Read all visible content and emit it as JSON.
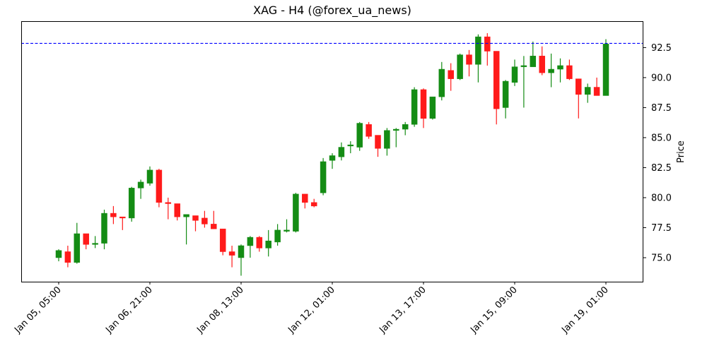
{
  "title": "XAG - H4 (@forex_ua_news)",
  "colors": {
    "up": "#148c14",
    "down": "#ff1a1a",
    "reference_line": "#0000ff",
    "axes": "#000000"
  },
  "chart_data": {
    "type": "candlestick",
    "title": "XAG - H4 (@forex_ua_news)",
    "xlabel": "",
    "ylabel": "Price",
    "ylim": [
      73.0,
      94.7
    ],
    "yticks": [
      75.0,
      77.5,
      80.0,
      82.5,
      85.0,
      87.5,
      90.0,
      92.5
    ],
    "ytick_labels": [
      "75.0",
      "77.5",
      "80.0",
      "82.5",
      "85.0",
      "87.5",
      "90.0",
      "92.5"
    ],
    "xtick_indices": [
      0,
      10,
      20,
      30,
      40,
      50,
      60
    ],
    "xtick_labels": [
      "Jan 05, 05:00",
      "Jan 06, 21:00",
      "Jan 08, 13:00",
      "Jan 12, 01:00",
      "Jan 13, 17:00",
      "Jan 15, 09:00",
      "Jan 19, 01:00"
    ],
    "yaxis_position": "right",
    "grid": false,
    "reference_line": {
      "value": 92.85,
      "style": "dashed",
      "color": "#0000ff"
    },
    "candles": [
      {
        "o": 75.0,
        "h": 75.7,
        "l": 74.7,
        "c": 75.6
      },
      {
        "o": 75.5,
        "h": 76.0,
        "l": 74.2,
        "c": 74.6
      },
      {
        "o": 74.6,
        "h": 77.9,
        "l": 74.5,
        "c": 77.0
      },
      {
        "o": 77.0,
        "h": 77.0,
        "l": 75.7,
        "c": 76.1
      },
      {
        "o": 76.1,
        "h": 76.8,
        "l": 75.8,
        "c": 76.2
      },
      {
        "o": 76.2,
        "h": 79.0,
        "l": 75.7,
        "c": 78.7
      },
      {
        "o": 78.7,
        "h": 79.3,
        "l": 77.8,
        "c": 78.4
      },
      {
        "o": 78.4,
        "h": 78.4,
        "l": 77.3,
        "c": 78.3
      },
      {
        "o": 78.3,
        "h": 80.9,
        "l": 78.0,
        "c": 80.8
      },
      {
        "o": 80.8,
        "h": 81.5,
        "l": 79.9,
        "c": 81.3
      },
      {
        "o": 81.2,
        "h": 82.6,
        "l": 81.0,
        "c": 82.3
      },
      {
        "o": 82.3,
        "h": 82.4,
        "l": 79.2,
        "c": 79.6
      },
      {
        "o": 79.6,
        "h": 80.0,
        "l": 78.2,
        "c": 79.5
      },
      {
        "o": 79.5,
        "h": 79.5,
        "l": 78.1,
        "c": 78.4
      },
      {
        "o": 78.4,
        "h": 78.6,
        "l": 76.1,
        "c": 78.6
      },
      {
        "o": 78.5,
        "h": 78.5,
        "l": 77.2,
        "c": 78.1
      },
      {
        "o": 78.3,
        "h": 78.9,
        "l": 77.5,
        "c": 77.8
      },
      {
        "o": 77.8,
        "h": 78.9,
        "l": 77.4,
        "c": 77.4
      },
      {
        "o": 77.4,
        "h": 77.4,
        "l": 75.2,
        "c": 75.5
      },
      {
        "o": 75.5,
        "h": 76.0,
        "l": 74.2,
        "c": 75.2
      },
      {
        "o": 75.0,
        "h": 76.1,
        "l": 73.5,
        "c": 76.0
      },
      {
        "o": 76.0,
        "h": 76.8,
        "l": 75.0,
        "c": 76.7
      },
      {
        "o": 76.7,
        "h": 76.8,
        "l": 75.5,
        "c": 75.8
      },
      {
        "o": 75.8,
        "h": 77.3,
        "l": 75.1,
        "c": 76.4
      },
      {
        "o": 76.3,
        "h": 77.8,
        "l": 76.0,
        "c": 77.3
      },
      {
        "o": 77.2,
        "h": 78.2,
        "l": 77.1,
        "c": 77.3
      },
      {
        "o": 77.2,
        "h": 80.4,
        "l": 77.1,
        "c": 80.3
      },
      {
        "o": 80.3,
        "h": 80.3,
        "l": 79.1,
        "c": 79.6
      },
      {
        "o": 79.6,
        "h": 79.9,
        "l": 79.2,
        "c": 79.3
      },
      {
        "o": 80.4,
        "h": 83.3,
        "l": 80.2,
        "c": 83.0
      },
      {
        "o": 83.1,
        "h": 83.7,
        "l": 82.4,
        "c": 83.5
      },
      {
        "o": 83.4,
        "h": 84.6,
        "l": 83.1,
        "c": 84.2
      },
      {
        "o": 84.3,
        "h": 84.7,
        "l": 83.7,
        "c": 84.4
      },
      {
        "o": 84.2,
        "h": 86.3,
        "l": 83.9,
        "c": 86.2
      },
      {
        "o": 86.1,
        "h": 86.3,
        "l": 84.9,
        "c": 85.1
      },
      {
        "o": 85.2,
        "h": 85.2,
        "l": 83.4,
        "c": 84.1
      },
      {
        "o": 84.1,
        "h": 85.8,
        "l": 83.5,
        "c": 85.6
      },
      {
        "o": 85.6,
        "h": 85.8,
        "l": 84.2,
        "c": 85.7
      },
      {
        "o": 85.7,
        "h": 86.3,
        "l": 85.2,
        "c": 86.1
      },
      {
        "o": 86.1,
        "h": 89.2,
        "l": 85.9,
        "c": 89.0
      },
      {
        "o": 89.0,
        "h": 89.1,
        "l": 85.8,
        "c": 86.6
      },
      {
        "o": 86.6,
        "h": 88.4,
        "l": 86.5,
        "c": 88.4
      },
      {
        "o": 88.4,
        "h": 91.3,
        "l": 88.1,
        "c": 90.7
      },
      {
        "o": 90.6,
        "h": 91.2,
        "l": 88.9,
        "c": 89.9
      },
      {
        "o": 89.9,
        "h": 92.0,
        "l": 89.8,
        "c": 91.9
      },
      {
        "o": 91.9,
        "h": 92.3,
        "l": 90.1,
        "c": 91.1
      },
      {
        "o": 91.1,
        "h": 93.6,
        "l": 89.6,
        "c": 93.4
      },
      {
        "o": 93.4,
        "h": 93.7,
        "l": 91.0,
        "c": 92.2
      },
      {
        "o": 92.2,
        "h": 92.2,
        "l": 86.1,
        "c": 87.4
      },
      {
        "o": 87.5,
        "h": 89.8,
        "l": 86.6,
        "c": 89.7
      },
      {
        "o": 89.6,
        "h": 91.5,
        "l": 89.3,
        "c": 90.9
      },
      {
        "o": 90.9,
        "h": 91.8,
        "l": 87.5,
        "c": 91.0
      },
      {
        "o": 90.9,
        "h": 93.0,
        "l": 90.9,
        "c": 91.8
      },
      {
        "o": 91.8,
        "h": 92.6,
        "l": 90.2,
        "c": 90.4
      },
      {
        "o": 90.4,
        "h": 92.0,
        "l": 89.2,
        "c": 90.7
      },
      {
        "o": 90.7,
        "h": 91.6,
        "l": 89.6,
        "c": 91.0
      },
      {
        "o": 91.0,
        "h": 91.5,
        "l": 89.8,
        "c": 89.9
      },
      {
        "o": 89.9,
        "h": 89.9,
        "l": 86.6,
        "c": 88.6
      },
      {
        "o": 88.6,
        "h": 89.5,
        "l": 87.9,
        "c": 89.2
      },
      {
        "o": 89.2,
        "h": 90.0,
        "l": 88.5,
        "c": 88.5
      },
      {
        "o": 88.5,
        "h": 93.2,
        "l": 88.5,
        "c": 92.8
      }
    ]
  }
}
